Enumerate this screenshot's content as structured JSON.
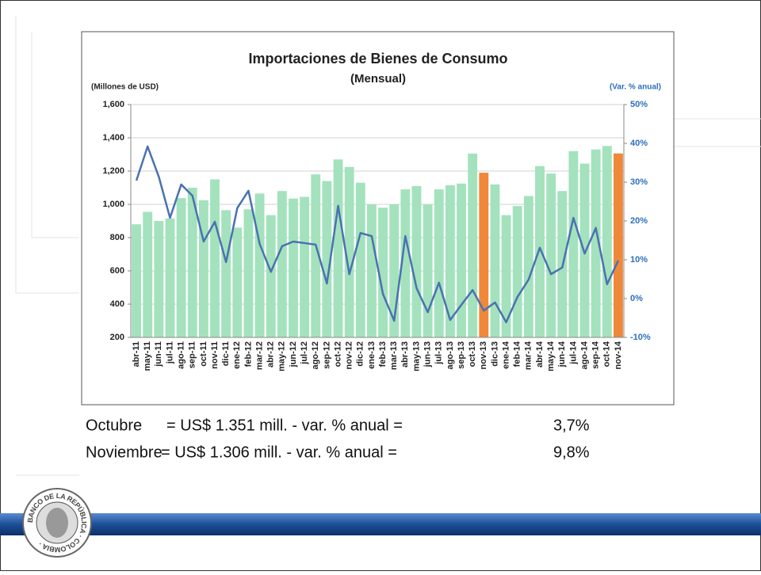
{
  "chart_data": {
    "type": "bar_line",
    "title": "Importaciones de Bienes de Consumo",
    "subtitle": "(Mensual)",
    "ylabel": "(Millones de USD)",
    "y2label": "(Var. % anual)",
    "categories": [
      "abr-11",
      "may-11",
      "jun-11",
      "jul-11",
      "ago-11",
      "sep-11",
      "oct-11",
      "nov-11",
      "dic-11",
      "ene-12",
      "feb-12",
      "mar-12",
      "abr-12",
      "may-12",
      "jun-12",
      "jul-12",
      "ago-12",
      "sep-12",
      "oct-12",
      "nov-12",
      "dic-12",
      "ene-13",
      "feb-13",
      "mar-13",
      "abr-13",
      "may-13",
      "jun-13",
      "jul-13",
      "ago-13",
      "sep-13",
      "oct-13",
      "nov-13",
      "dic-13",
      "ene-14",
      "feb-14",
      "mar-14",
      "abr-14",
      "may-14",
      "jun-14",
      "jul-14",
      "ago-14",
      "sep-14",
      "oct-14",
      "nov-14"
    ],
    "series": [
      {
        "type": "bar",
        "color": "#a3e2bd",
        "colors": [
          "#a3e2bd",
          "#a3e2bd",
          "#a3e2bd",
          "#a3e2bd",
          "#a3e2bd",
          "#a3e2bd",
          "#a3e2bd",
          "#a3e2bd",
          "#a3e2bd",
          "#a3e2bd",
          "#a3e2bd",
          "#a3e2bd",
          "#a3e2bd",
          "#a3e2bd",
          "#a3e2bd",
          "#a3e2bd",
          "#a3e2bd",
          "#a3e2bd",
          "#a3e2bd",
          "#a3e2bd",
          "#a3e2bd",
          "#a3e2bd",
          "#a3e2bd",
          "#a3e2bd",
          "#a3e2bd",
          "#a3e2bd",
          "#a3e2bd",
          "#a3e2bd",
          "#a3e2bd",
          "#a3e2bd",
          "#a3e2bd",
          "#f0883a",
          "#a3e2bd",
          "#a3e2bd",
          "#a3e2bd",
          "#a3e2bd",
          "#a3e2bd",
          "#a3e2bd",
          "#a3e2bd",
          "#a3e2bd",
          "#a3e2bd",
          "#a3e2bd",
          "#a3e2bd",
          "#f0883a"
        ],
        "values": [
          880,
          955,
          900,
          915,
          1038,
          1100,
          1025,
          1150,
          965,
          860,
          970,
          1065,
          935,
          1080,
          1035,
          1045,
          1180,
          1140,
          1270,
          1225,
          1130,
          1000,
          980,
          1000,
          1090,
          1110,
          1000,
          1090,
          1115,
          1125,
          1305,
          1190,
          1120,
          935,
          990,
          1050,
          1230,
          1185,
          1080,
          1320,
          1245,
          1330,
          1351,
          1306
        ]
      },
      {
        "type": "line",
        "color": "#4a72b0",
        "axis": "y2",
        "values": [
          30.4,
          39.2,
          31.4,
          20.8,
          29.4,
          26.5,
          14.7,
          19.8,
          9.4,
          23.3,
          27.8,
          14.1,
          6.9,
          13.5,
          14.7,
          14.3,
          13.9,
          3.9,
          23.9,
          6.3,
          16.9,
          16.1,
          1.2,
          -5.7,
          16.1,
          2.7,
          -3.5,
          4.1,
          -5.5,
          -1.6,
          2.2,
          -3.1,
          -1.0,
          -6.1,
          0.4,
          4.9,
          13.1,
          6.3,
          8.0,
          20.8,
          11.6,
          18.2,
          3.7,
          9.8
        ]
      }
    ],
    "ylim": [
      200,
      1600
    ],
    "yticks": [
      200,
      400,
      600,
      800,
      {
        "value": 1000,
        "label": "1,000"
      },
      {
        "value": 1200,
        "label": "1,200"
      },
      {
        "value": 1400,
        "label": "1,400"
      },
      {
        "value": 1600,
        "label": "1,600"
      }
    ],
    "y2lim": [
      -10,
      50
    ],
    "y2ticks": [
      {
        "value": -10,
        "label": "-10%"
      },
      {
        "value": 0,
        "label": "0%"
      },
      {
        "value": 10,
        "label": "10%"
      },
      {
        "value": 20,
        "label": "20%"
      },
      {
        "value": 30,
        "label": "30%"
      },
      {
        "value": 40,
        "label": "40%"
      },
      {
        "value": 50,
        "label": "50%"
      }
    ],
    "grid": true
  },
  "notes": [
    {
      "month": "Octubre",
      "text": "= US$ 1.351 mill.  -  var. % anual =",
      "value": "3,7%"
    },
    {
      "month": "Noviembre",
      "text": "= US$ 1.306 mill.  -  var. % anual =",
      "value": "9,8%"
    }
  ],
  "logo": {
    "text": "BANCO DE LA REPÚBLICA · COLOMBIA ·"
  }
}
